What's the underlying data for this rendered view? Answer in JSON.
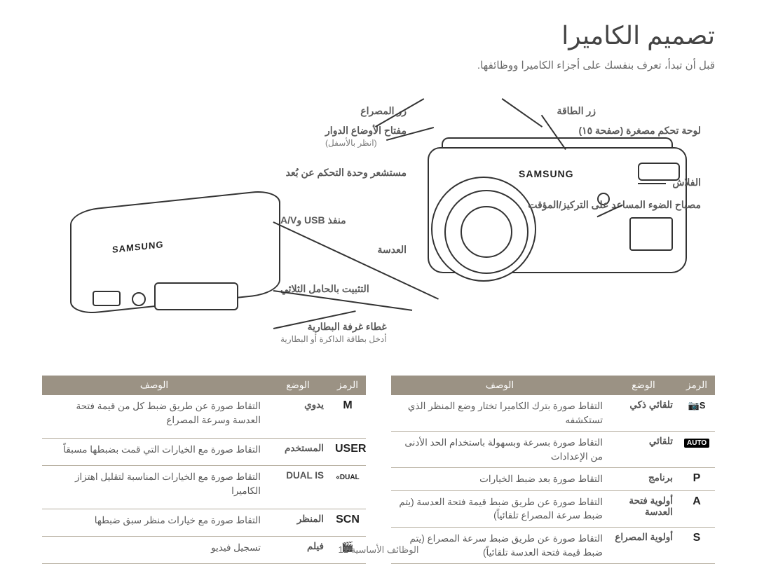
{
  "page": {
    "title": "تصميم الكاميرا",
    "subtitle": "قبل أن تبدأ، تعرف بنفسك على أجزاء الكاميرا ووظائفها.",
    "footer": "الوظائف الأساسية 12"
  },
  "diagram": {
    "brand": "SAMSUNG",
    "labels_right": {
      "power": "زر الطاقة",
      "minilcd": "لوحة تحكم مصغرة (صفحة ١٥)",
      "flash": "الفلاش",
      "aflamp": "مصباح الضوء المساعد على التركيز/المؤقت"
    },
    "labels_left_top": {
      "shutter": "زر المصراع",
      "modedial": "مفتاح الأوضاع الدوار",
      "modedial_sub": "(انظر بالأسفل)",
      "zoom": "مستشعر وحدة التحكم عن بُعد",
      "lens": "العدسة"
    },
    "labels_bottom": {
      "usb": "منفذ USB وA/V",
      "tripod": "التثبيت بالحامل الثلاثي",
      "battery": "غطاء غرفة البطارية",
      "battery_sub": "أدخل بطاقة الذاكرة أو البطارية"
    }
  },
  "tables": {
    "headers": {
      "icon": "الرمز",
      "mode": "الوضع",
      "desc": "الوصف"
    },
    "right": [
      {
        "icon_html": "<span style='font-size:13px;'>📷S</span>",
        "mode": "تلقائي ذكي",
        "desc": "التقاط صورة بترك الكاميرا تختار وضع المنظر الذي تستكشفه"
      },
      {
        "icon_html": "<span class='icon-box'>AUTO</span>",
        "mode": "تلقائي",
        "desc": "التقاط صورة بسرعة وبسهولة باستخدام الحد الأدنى من الإعدادات"
      },
      {
        "icon_text": "P",
        "mode": "برنامج",
        "desc": "التقاط صورة بعد ضبط الخيارات"
      },
      {
        "icon_text": "A",
        "mode": "أولوية فتحة العدسة",
        "desc": "التقاط صورة عن طريق ضبط قيمة فتحة العدسة (يتم ضبط سرعة المصراع تلقائياً)"
      },
      {
        "icon_text": "S",
        "mode": "أولوية المصراع",
        "desc": "التقاط صورة عن طريق ضبط سرعة المصراع (يتم ضبط قيمة فتحة العدسة تلقائياً)"
      }
    ],
    "left": [
      {
        "icon_text": "M",
        "mode": "يدوي",
        "desc": "التقاط صورة عن طريق ضبط كل من قيمة فتحة العدسة وسرعة المصراع"
      },
      {
        "icon_text": "USER",
        "mode": "المستخدم",
        "desc": "التقاط صورة مع الخيارات التي قمت بضبطها مسبقاً"
      },
      {
        "icon_html": "<span style='font-size:10px;'>«DUAL</span>",
        "mode": "DUAL IS",
        "desc": "التقاط صورة مع الخيارات المناسبة لتقليل اهتزاز الكاميرا"
      },
      {
        "icon_text": "SCN",
        "mode": "المنظر",
        "desc": "التقاط صورة مع خيارات منظر سبق ضبطها"
      },
      {
        "icon_html": "<span style='font-size:14px;'>🎬</span>",
        "mode": "فيلم",
        "desc": "تسجيل فيديو"
      }
    ]
  },
  "styling": {
    "header_bg": "#9b9284",
    "header_text": "#ffffff",
    "row_border": "#b5ad9e",
    "text_color": "#5a5a5a",
    "background": "#ffffff"
  }
}
